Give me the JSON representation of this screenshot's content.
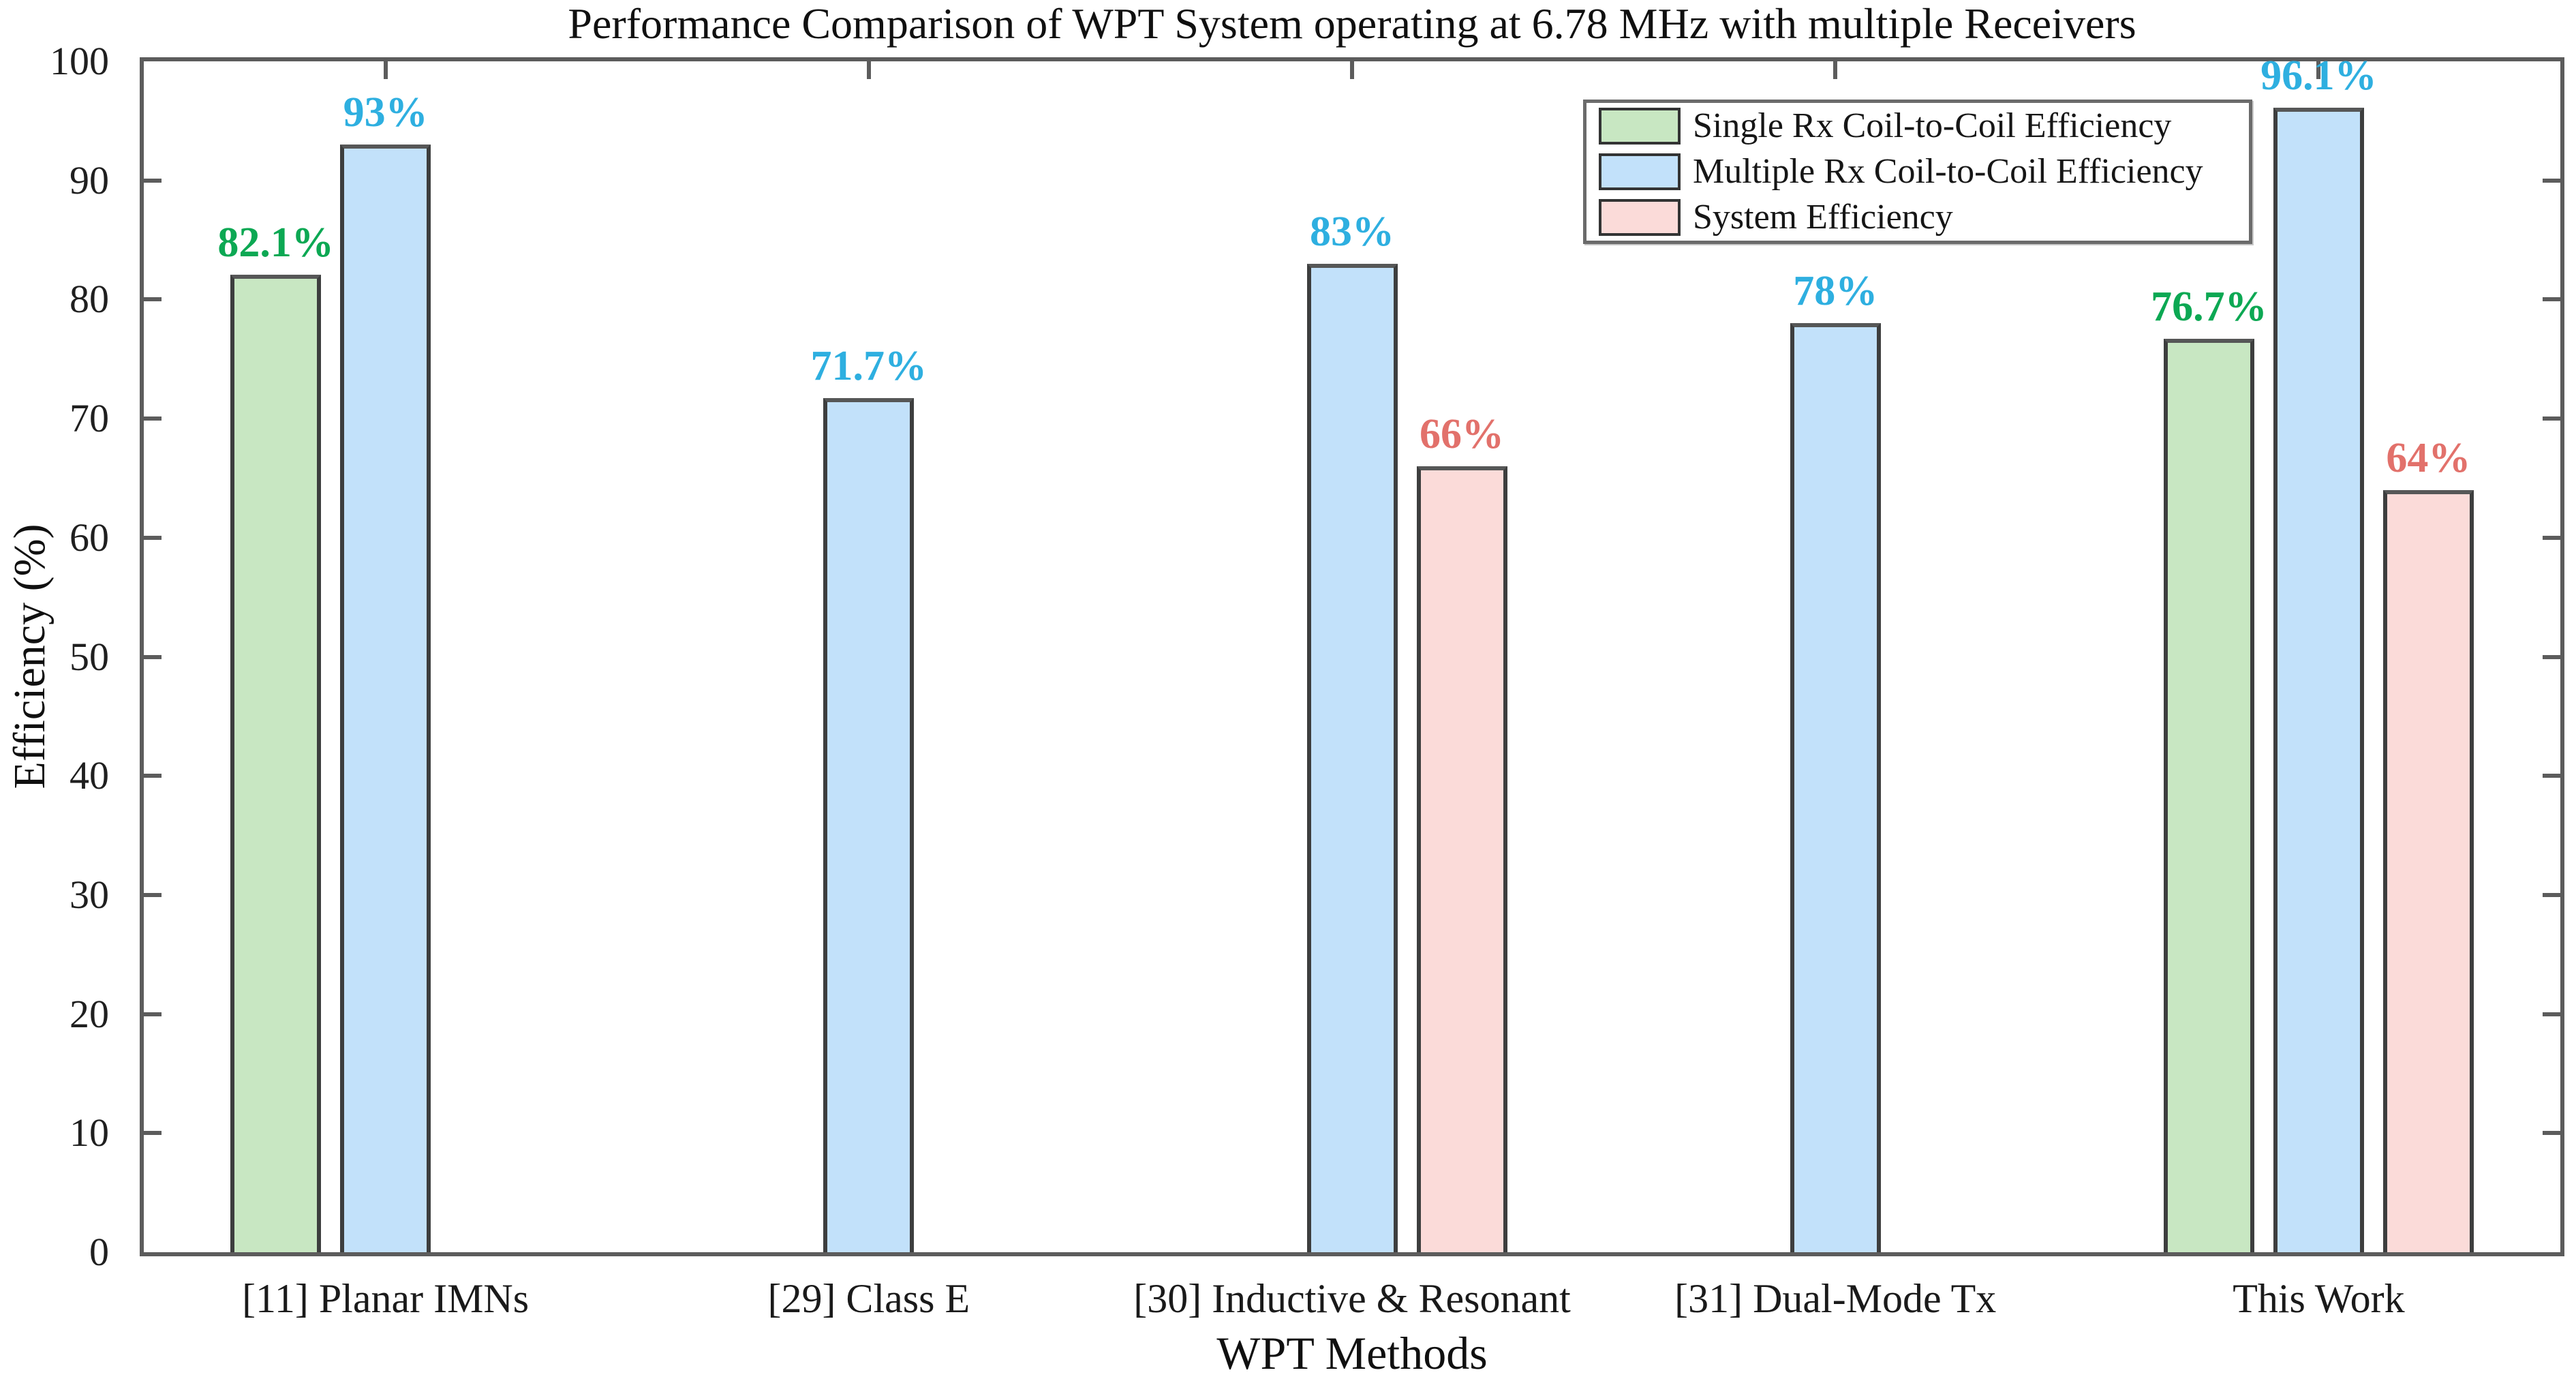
{
  "chart_data": {
    "type": "bar",
    "title": "Performance Comparison of WPT System operating at 6.78 MHz with multiple Receivers",
    "xlabel": "WPT Methods",
    "ylabel": "Efficiency (%)",
    "ylim": [
      0,
      100
    ],
    "yticks": [
      0,
      10,
      20,
      30,
      40,
      50,
      60,
      70,
      80,
      90,
      100
    ],
    "grid": false,
    "legend_position": "top-right",
    "categories": [
      "[11] Planar IMNs",
      "[29] Class E",
      "[30] Inductive & Resonant",
      "[31] Dual-Mode Tx",
      "This Work"
    ],
    "series": [
      {
        "name": "Single Rx Coil-to-Coil Efficiency",
        "color": "#c8e7c2",
        "label_color": "#0ca853",
        "values": [
          82.1,
          null,
          null,
          null,
          76.7
        ],
        "labels": [
          "82.1%",
          "",
          "",
          "",
          "76.7%"
        ]
      },
      {
        "name": "Multiple Rx Coil-to-Coil Efficiency",
        "color": "#c2e1fa",
        "label_color": "#2eafe0",
        "values": [
          93,
          71.7,
          83,
          78,
          96.1
        ],
        "labels": [
          "93%",
          "71.7%",
          "83%",
          "78%",
          "96.1%"
        ]
      },
      {
        "name": "System Efficiency",
        "color": "#fbdbd9",
        "label_color": "#e2716b",
        "values": [
          null,
          null,
          66,
          null,
          64
        ],
        "labels": [
          "",
          "",
          "66%",
          "",
          "64%"
        ]
      }
    ],
    "bar_edge_color": "#3d3e3e",
    "axis_color": "#5c5c5c"
  }
}
